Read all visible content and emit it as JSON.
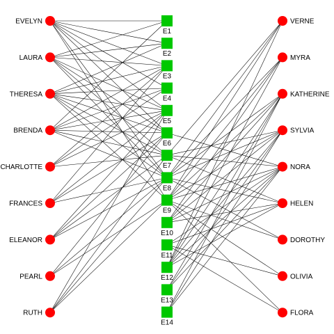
{
  "colors": {
    "women": "#ff0000",
    "events": "#00c800",
    "edges": "#000000",
    "background": "#ffffff"
  },
  "women_left": [
    "EVELYN",
    "LAURA",
    "THERESA",
    "BRENDA",
    "CHARLOTTE",
    "FRANCES",
    "ELEANOR",
    "PEARL",
    "RUTH"
  ],
  "women_right": [
    "VERNE",
    "MYRA",
    "KATHERINE",
    "SYLVIA",
    "NORA",
    "HELEN",
    "DOROTHY",
    "OLIVIA",
    "FLORA"
  ],
  "events": [
    "E1",
    "E2",
    "E3",
    "E4",
    "E5",
    "E6",
    "E7",
    "E8",
    "E9",
    "E10",
    "E11",
    "E12",
    "E13",
    "E14"
  ],
  "attendance": {
    "EVELYN": [
      "E1",
      "E2",
      "E3",
      "E4",
      "E5",
      "E6",
      "E8",
      "E9"
    ],
    "LAURA": [
      "E1",
      "E2",
      "E3",
      "E5",
      "E6",
      "E7",
      "E8"
    ],
    "THERESA": [
      "E2",
      "E3",
      "E4",
      "E5",
      "E6",
      "E7",
      "E8",
      "E9"
    ],
    "BRENDA": [
      "E1",
      "E3",
      "E4",
      "E5",
      "E6",
      "E7",
      "E8"
    ],
    "CHARLOTTE": [
      "E3",
      "E4",
      "E5",
      "E7"
    ],
    "FRANCES": [
      "E3",
      "E5",
      "E6",
      "E8"
    ],
    "ELEANOR": [
      "E5",
      "E6",
      "E7",
      "E8"
    ],
    "PEARL": [
      "E6",
      "E8",
      "E9"
    ],
    "RUTH": [
      "E5",
      "E7",
      "E8",
      "E9"
    ],
    "VERNE": [
      "E7",
      "E8",
      "E9",
      "E12"
    ],
    "MYRA": [
      "E8",
      "E9",
      "E10",
      "E12"
    ],
    "KATHERINE": [
      "E8",
      "E9",
      "E10",
      "E12",
      "E13",
      "E14"
    ],
    "SYLVIA": [
      "E7",
      "E8",
      "E9",
      "E10",
      "E12",
      "E13",
      "E14"
    ],
    "NORA": [
      "E6",
      "E7",
      "E9",
      "E10",
      "E11",
      "E12",
      "E13",
      "E14"
    ],
    "HELEN": [
      "E7",
      "E8",
      "E10",
      "E11",
      "E12"
    ],
    "DOROTHY": [
      "E8",
      "E9"
    ],
    "OLIVIA": [
      "E9",
      "E11"
    ],
    "FLORA": [
      "E9",
      "E11"
    ]
  }
}
